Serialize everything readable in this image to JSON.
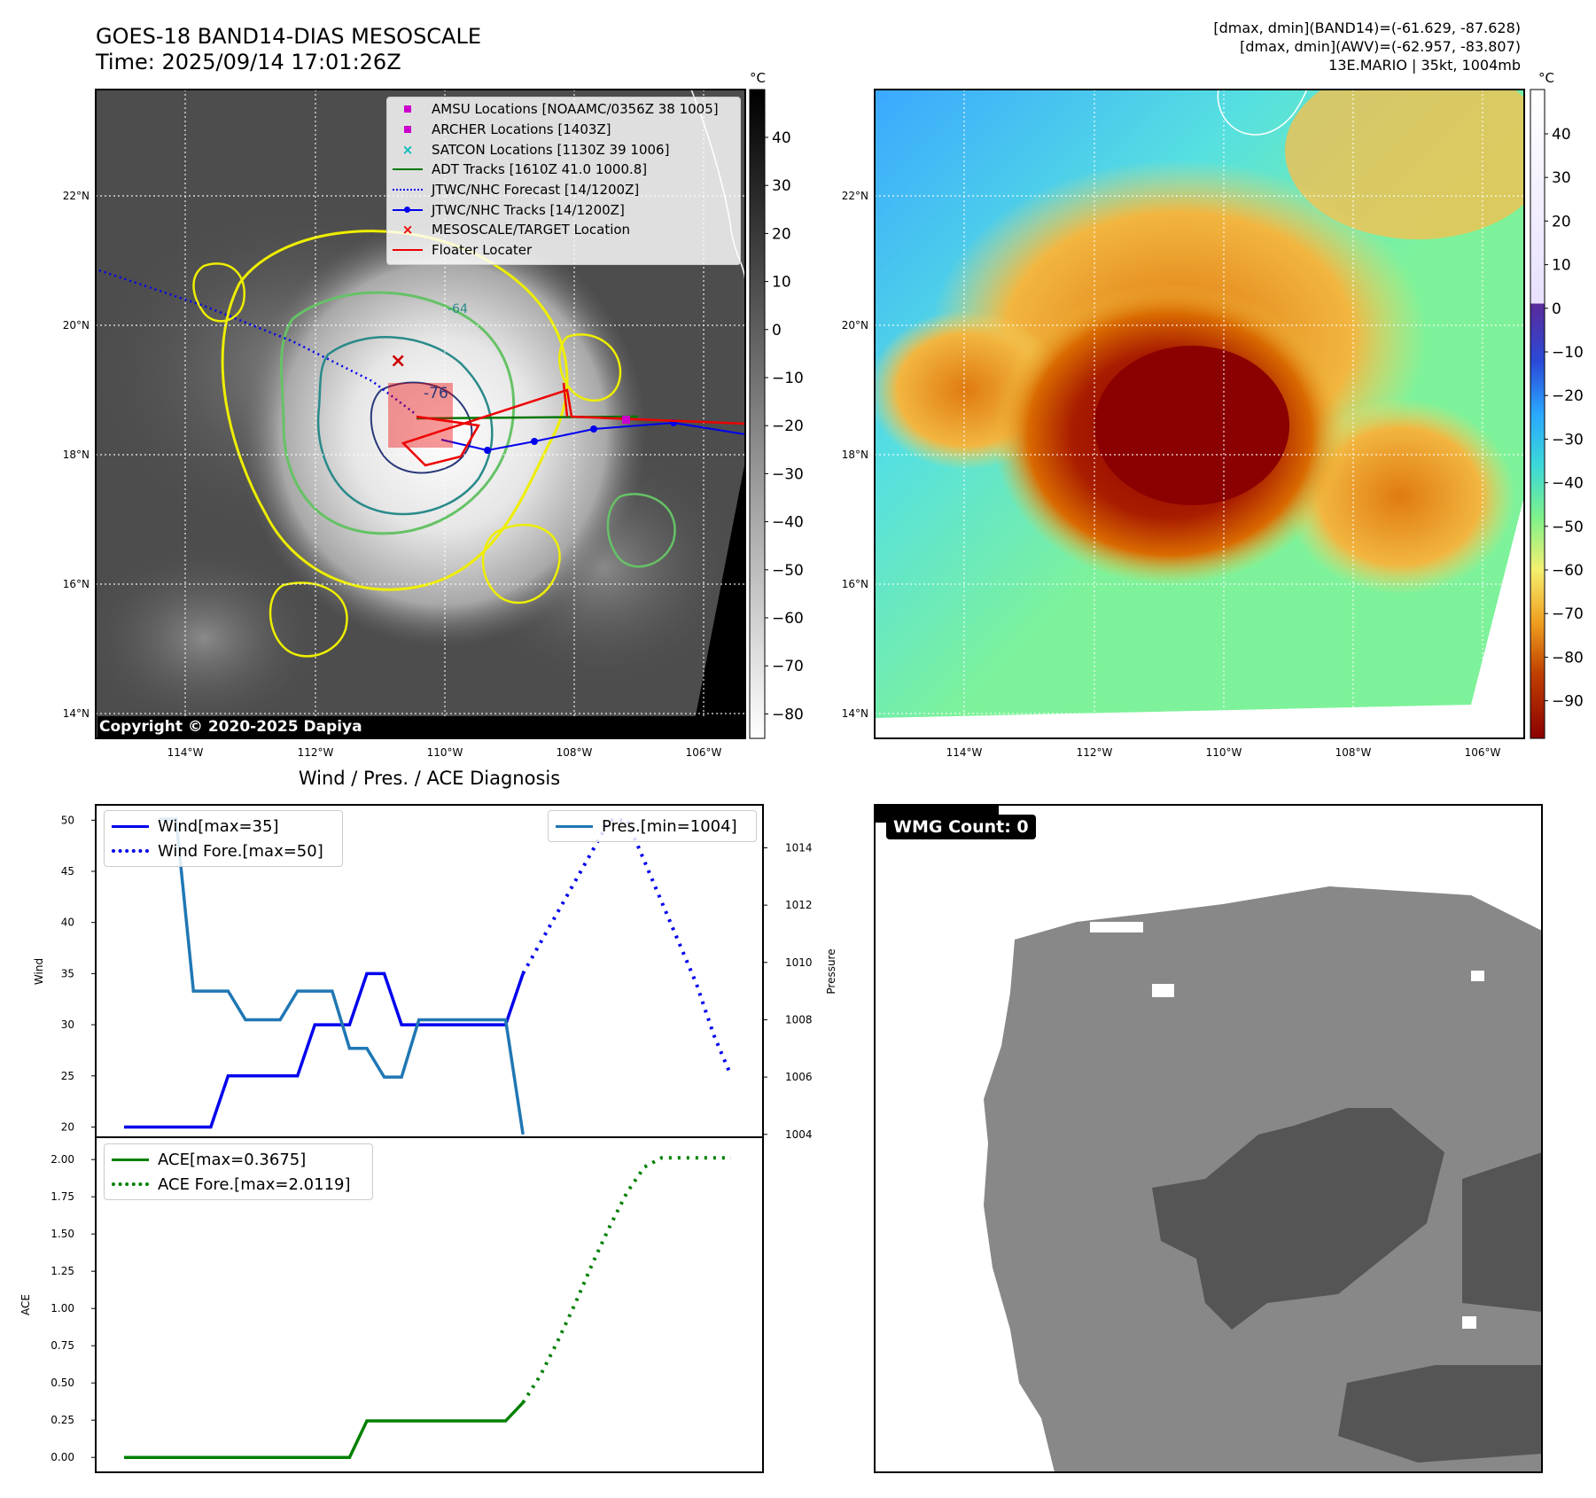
{
  "header": {
    "title_line1": "GOES-18 BAND14-DIAS MESOSCALE",
    "title_line2": "Time: 2025/09/14 17:01:26Z",
    "info_line1": "[dmax, dmin](BAND14)=(-61.629, -87.628)",
    "info_line2": "[dmax, dmin](AWV)=(-62.957, -83.807)",
    "info_line3": "13E.MARIO | 35kt, 1004mb"
  },
  "ir_panel": {
    "unit": "°C",
    "colorbar_ticks": [
      "40",
      "30",
      "20",
      "10",
      "0",
      "−10",
      "−20",
      "−30",
      "−40",
      "−50",
      "−60",
      "−70",
      "−80"
    ],
    "lat_labels": [
      "22°N",
      "20°N",
      "18°N",
      "16°N",
      "14°N"
    ],
    "lon_labels": [
      "114°W",
      "112°W",
      "110°W",
      "108°W",
      "106°W"
    ],
    "contour_label": "-76",
    "contour_label2": "-64",
    "copyright": "Copyright © 2020-2025 Dapiya",
    "legend": [
      {
        "label": "AMSU Locations [NOAAMC/0356Z 38 1005]",
        "marker": "square",
        "color": "#cc00cc"
      },
      {
        "label": "ARCHER Locations [1403Z]",
        "marker": "square",
        "color": "#cc00cc"
      },
      {
        "label": "SATCON Locations [1130Z 39 1006]",
        "marker": "x",
        "color": "#00bbbb"
      },
      {
        "label": "ADT Tracks [1610Z 41.0 1000.8]",
        "marker": "line",
        "color": "#007700"
      },
      {
        "label": "JTWC/NHC Forecast [14/1200Z]",
        "marker": "dotted",
        "color": "#0000ee"
      },
      {
        "label": "JTWC/NHC Tracks [14/1200Z]",
        "marker": "line-dot",
        "color": "#0000ee"
      },
      {
        "label": "MESOSCALE/TARGET Location",
        "marker": "x",
        "color": "#ee0000"
      },
      {
        "label": "Floater Locater",
        "marker": "line",
        "color": "#ee0000"
      }
    ]
  },
  "awv_panel": {
    "unit": "°C",
    "colorbar_ticks": [
      "40",
      "30",
      "20",
      "10",
      "0",
      "−10",
      "−20",
      "−30",
      "−40",
      "−50",
      "−60",
      "−70",
      "−80",
      "−90"
    ],
    "lat_labels": [
      "22°N",
      "20°N",
      "18°N",
      "16°N",
      "14°N"
    ],
    "lon_labels": [
      "114°W",
      "112°W",
      "110°W",
      "108°W",
      "106°W"
    ]
  },
  "wmg_panel": {
    "label": "WMG Count: 0"
  },
  "colors": {
    "wind": "#0000ee",
    "pressure": "#1f77b4",
    "ace": "#008000"
  },
  "chart_data": [
    {
      "type": "line",
      "title": "Wind / Pres. / ACE Diagnosis",
      "ylabel": "Wind",
      "ylabel_right": "Pressure",
      "ylim": [
        19,
        51.5
      ],
      "ylim_right": [
        1003.9,
        1015.5
      ],
      "yticks": [
        20,
        25,
        30,
        35,
        40,
        45,
        50
      ],
      "yticks_right": [
        1004,
        1006,
        1008,
        1010,
        1012,
        1014
      ],
      "x": [
        0,
        1,
        2,
        3,
        4,
        5,
        6,
        7,
        8,
        9,
        10,
        11,
        12,
        13,
        14,
        15,
        16,
        17,
        18,
        19,
        20,
        21,
        22,
        23,
        24,
        25,
        26,
        27,
        28,
        29,
        30,
        31,
        32,
        33,
        34,
        35
      ],
      "series": [
        {
          "name": "Wind[max=35]",
          "style": "solid",
          "axis": "left",
          "x": [
            0,
            1,
            2,
            3,
            4,
            5,
            6,
            7,
            8,
            9,
            10,
            11,
            12,
            13,
            14,
            15,
            16,
            17,
            18,
            19,
            20,
            21,
            22,
            23
          ],
          "values": [
            20,
            20,
            20,
            20,
            20,
            20,
            25,
            25,
            25,
            25,
            25,
            30,
            30,
            30,
            35,
            35,
            30,
            30,
            30,
            30,
            30,
            30,
            30,
            35
          ]
        },
        {
          "name": "Wind Fore.[max=50]",
          "style": "dotted",
          "axis": "left",
          "x": [
            23,
            24,
            25,
            26,
            27,
            28,
            29,
            30,
            31,
            32,
            33,
            34,
            35
          ],
          "values": [
            35,
            38,
            41,
            44,
            47,
            50,
            50,
            46,
            42,
            38,
            34,
            29,
            25
          ]
        },
        {
          "name": "Pres.[min=1004]",
          "style": "solid",
          "axis": "right",
          "x": [
            2,
            3,
            4,
            5,
            6,
            7,
            8,
            9,
            10,
            11,
            12,
            13,
            14,
            15,
            16,
            17,
            18,
            19,
            20,
            21,
            22,
            23
          ],
          "values": [
            1015,
            1015,
            1009,
            1009,
            1009,
            1008,
            1008,
            1008,
            1009,
            1009,
            1009,
            1007,
            1007,
            1006,
            1006,
            1008,
            1008,
            1008,
            1008,
            1008,
            1008,
            1004
          ]
        }
      ]
    },
    {
      "type": "line",
      "ylabel": "ACE",
      "ylim": [
        -0.1,
        2.15
      ],
      "yticks": [
        0.0,
        0.25,
        0.5,
        0.75,
        1.0,
        1.25,
        1.5,
        1.75,
        2.0
      ],
      "ytick_labels": [
        "0.00",
        "0.25",
        "0.50",
        "0.75",
        "1.00",
        "1.25",
        "1.50",
        "1.75",
        "2.00"
      ],
      "series": [
        {
          "name": "ACE[max=0.3675]",
          "style": "solid",
          "x": [
            0,
            1,
            2,
            3,
            4,
            5,
            6,
            7,
            8,
            9,
            10,
            11,
            12,
            13,
            14,
            15,
            16,
            17,
            18,
            19,
            20,
            21,
            22,
            23
          ],
          "values": [
            0,
            0,
            0,
            0,
            0,
            0,
            0,
            0,
            0,
            0,
            0,
            0,
            0,
            0,
            0.245,
            0.245,
            0.245,
            0.245,
            0.245,
            0.245,
            0.245,
            0.245,
            0.245,
            0.3675
          ]
        },
        {
          "name": "ACE Fore.[max=2.0119]",
          "style": "dotted",
          "x": [
            23,
            24,
            25,
            26,
            27,
            28,
            29,
            30,
            31,
            32,
            33,
            34,
            35
          ],
          "values": [
            0.3675,
            0.55,
            0.78,
            1.03,
            1.3,
            1.55,
            1.78,
            1.95,
            2.0119,
            2.0119,
            2.0119,
            2.0119,
            2.0119
          ]
        }
      ]
    }
  ]
}
